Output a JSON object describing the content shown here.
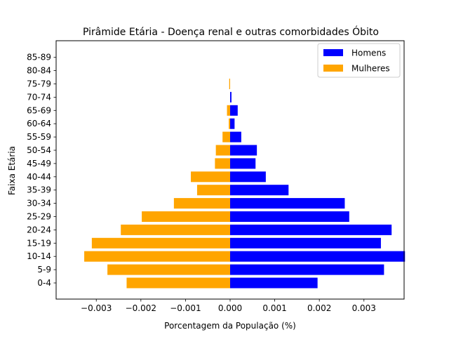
{
  "chart_data": {
    "type": "bar",
    "orientation": "horizontal",
    "title": "Pirâmide Etária - Doença renal e outras comorbidades Óbito",
    "xlabel": "Porcentagem da População (%)",
    "ylabel": "Faixa Etária",
    "categories": [
      "0-4",
      "5-9",
      "10-14",
      "15-19",
      "20-24",
      "25-29",
      "30-34",
      "35-39",
      "40-44",
      "45-49",
      "50-54",
      "55-59",
      "60-64",
      "65-69",
      "70-74",
      "75-79",
      "80-84",
      "85-89"
    ],
    "series": [
      {
        "name": "Homens",
        "color": "#0000ff",
        "values": [
          0.00196,
          0.00345,
          0.00392,
          0.00338,
          0.00362,
          0.00267,
          0.00257,
          0.00131,
          0.0008,
          0.00057,
          0.0006,
          0.00025,
          0.0001,
          0.00017,
          3e-05,
          0.0,
          0.0,
          0.0
        ]
      },
      {
        "name": "Mulheres",
        "color": "#ffa500",
        "values": [
          -0.00232,
          -0.00275,
          -0.00327,
          -0.0031,
          -0.00245,
          -0.00198,
          -0.00126,
          -0.00074,
          -0.00088,
          -0.00034,
          -0.00032,
          -0.00017,
          -3e-05,
          -7e-05,
          0.0,
          -2e-05,
          0.0,
          0.0
        ]
      }
    ],
    "xlim": [
      -0.0039,
      0.0039
    ],
    "xticks": [
      -0.003,
      -0.002,
      -0.001,
      0.0,
      0.001,
      0.002,
      0.003
    ],
    "xtick_labels": [
      "−0.003",
      "−0.002",
      "−0.001",
      "0.000",
      "0.001",
      "0.002",
      "0.003"
    ],
    "grid": false,
    "legend_position": "top-right"
  }
}
